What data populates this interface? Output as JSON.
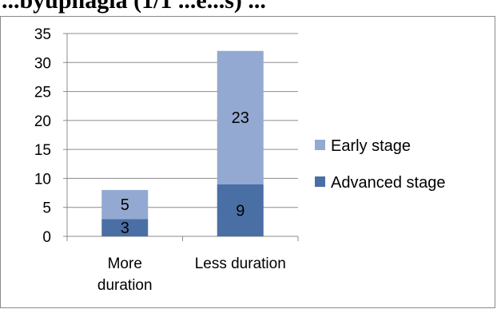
{
  "heading_text": "   ...byuphagia (1/1 ...e...s) ...",
  "chart_data": {
    "type": "bar",
    "stacked": true,
    "categories": [
      "More duration",
      "Less duration"
    ],
    "category_lines": [
      [
        "More",
        "duration"
      ],
      [
        "Less duration"
      ]
    ],
    "series": [
      {
        "name": "Advanced stage",
        "values": [
          3,
          9
        ],
        "color": "#4a6fa5"
      },
      {
        "name": "Early stage",
        "values": [
          5,
          23
        ],
        "color": "#93a9d1"
      }
    ],
    "ylim": [
      0,
      35
    ],
    "yticks": [
      "0",
      "5",
      "10",
      "15",
      "20",
      "25",
      "30",
      "35"
    ],
    "grid": true,
    "legend_position": "right",
    "title": "",
    "xlabel": "",
    "ylabel": ""
  }
}
